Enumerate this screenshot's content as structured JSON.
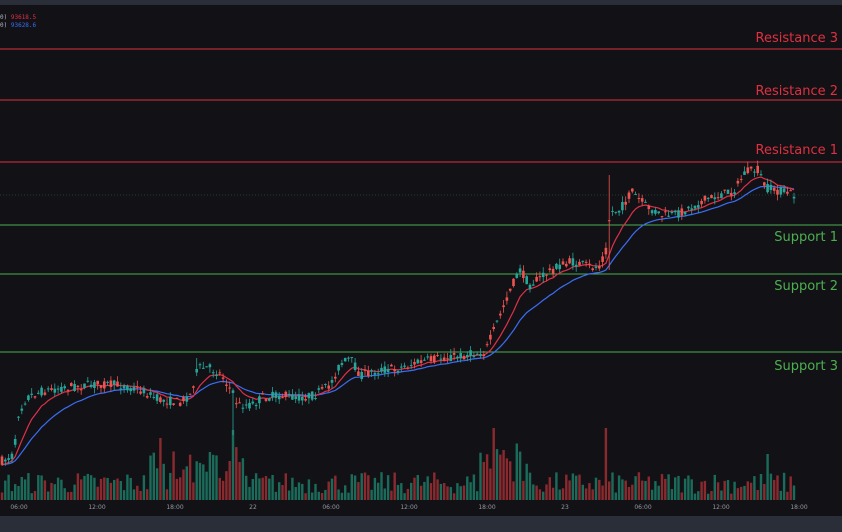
{
  "legend": {
    "line1_prefix": "0)",
    "line1_value": "93618.5",
    "line1_color": "#e0304a",
    "line2_prefix": "0)",
    "line2_value": "93628.6",
    "line2_color": "#3b6ef5"
  },
  "chart_data": {
    "type": "line",
    "subtype": "candlestick price chart with support/resistance levels and volume",
    "x_ticks": [
      "06:00",
      "12:00",
      "18:00",
      "22",
      "06:00",
      "12:00",
      "18:00",
      "23",
      "06:00",
      "12:00",
      "18:00"
    ],
    "levels": [
      {
        "name": "Resistance 3",
        "kind": "resistance",
        "color": "#e03040"
      },
      {
        "name": "Resistance 2",
        "kind": "resistance",
        "color": "#e03040"
      },
      {
        "name": "Resistance 1",
        "kind": "resistance",
        "color": "#e03040"
      },
      {
        "name": "Support 1",
        "kind": "support",
        "color": "#4caf50"
      },
      {
        "name": "Support 2",
        "kind": "support",
        "color": "#4caf50"
      },
      {
        "name": "Support 3",
        "kind": "support",
        "color": "#4caf50"
      }
    ],
    "price_path": [
      [
        0,
        462
      ],
      [
        14,
        455
      ],
      [
        18,
        415
      ],
      [
        26,
        398
      ],
      [
        40,
        392
      ],
      [
        60,
        388
      ],
      [
        80,
        386
      ],
      [
        100,
        384
      ],
      [
        120,
        385
      ],
      [
        140,
        390
      ],
      [
        160,
        400
      ],
      [
        180,
        402
      ],
      [
        190,
        395
      ],
      [
        198,
        368
      ],
      [
        210,
        368
      ],
      [
        222,
        375
      ],
      [
        232,
        392
      ],
      [
        238,
        405
      ],
      [
        252,
        405
      ],
      [
        262,
        398
      ],
      [
        280,
        395
      ],
      [
        300,
        398
      ],
      [
        315,
        395
      ],
      [
        330,
        385
      ],
      [
        340,
        365
      ],
      [
        350,
        358
      ],
      [
        360,
        375
      ],
      [
        380,
        370
      ],
      [
        400,
        368
      ],
      [
        420,
        362
      ],
      [
        440,
        358
      ],
      [
        460,
        356
      ],
      [
        485,
        352
      ],
      [
        492,
        335
      ],
      [
        500,
        315
      ],
      [
        510,
        290
      ],
      [
        520,
        270
      ],
      [
        530,
        285
      ],
      [
        540,
        278
      ],
      [
        555,
        268
      ],
      [
        570,
        262
      ],
      [
        585,
        265
      ],
      [
        598,
        268
      ],
      [
        606,
        250
      ],
      [
        610,
        212
      ],
      [
        620,
        210
      ],
      [
        632,
        192
      ],
      [
        645,
        205
      ],
      [
        660,
        215
      ],
      [
        675,
        215
      ],
      [
        690,
        208
      ],
      [
        705,
        200
      ],
      [
        720,
        195
      ],
      [
        735,
        190
      ],
      [
        745,
        172
      ],
      [
        758,
        170
      ],
      [
        766,
        188
      ],
      [
        775,
        190
      ],
      [
        785,
        192
      ],
      [
        795,
        195
      ]
    ],
    "ema_fast_color": "#e0304a",
    "ema_slow_color": "#3b6ef5",
    "up_color": "#26a69a",
    "down_color": "#ef5350",
    "volume_color_up": "#1b6b5a",
    "volume_color_down": "#8a2a2e"
  }
}
